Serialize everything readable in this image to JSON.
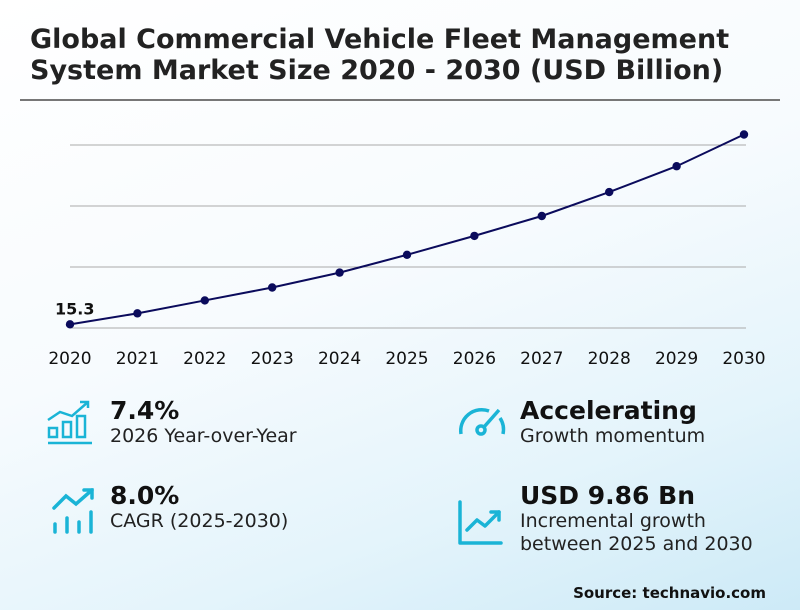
{
  "title_lines": [
    "Global Commercial Vehicle Fleet Management",
    "System Market Size 2020 - 2030 (USD Billion)"
  ],
  "chart_data": {
    "type": "line",
    "title": "Global Commercial Vehicle Fleet Management System Market Size 2020 - 2030 (USD Billion)",
    "categories": [
      "2020",
      "2021",
      "2022",
      "2023",
      "2024",
      "2025",
      "2026",
      "2027",
      "2028",
      "2029",
      "2030"
    ],
    "values": [
      15.3,
      16.2,
      17.26,
      18.32,
      19.54,
      21.0,
      22.55,
      24.18,
      26.14,
      28.26,
      30.86
    ],
    "data_labels": [
      {
        "category": "2020",
        "text": "15.3"
      }
    ],
    "ylim": [
      15,
      31
    ],
    "gridlines": [
      15,
      20,
      25,
      30
    ],
    "grid": true,
    "y_tick_labels_shown": false,
    "line_color": "#0b0b5c"
  },
  "stats": [
    {
      "icon": "bar-chart-growth-icon",
      "value": "7.4%",
      "label": "2026 Year-over-Year"
    },
    {
      "icon": "speedometer-icon",
      "value": "Accelerating",
      "label": "Growth momentum"
    },
    {
      "icon": "trend-up-bars-icon",
      "value": "8.0%",
      "label": "CAGR (2025-2030)"
    },
    {
      "icon": "line-chart-up-icon",
      "value": "USD 9.86 Bn",
      "label_lines": [
        "Incremental growth",
        "between 2025 and 2030"
      ]
    }
  ],
  "accent_color": "#1ab4d6",
  "source": "Source: technavio.com"
}
